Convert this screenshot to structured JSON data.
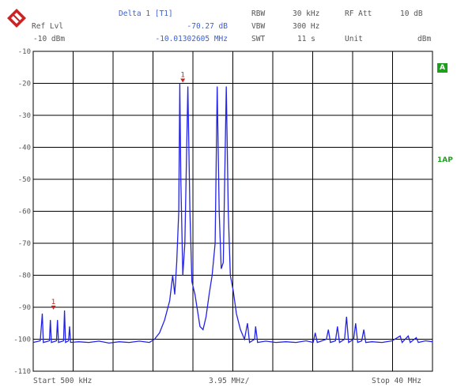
{
  "header": {
    "ref_lvl_label": "Ref Lvl",
    "ref_lvl_value": "-10 dBm",
    "marker_title": "Delta 1 [T1]",
    "marker_level": "-70.27 dB",
    "marker_freq": "-10.01302605 MHz",
    "rbw_label": "RBW",
    "rbw_value": "30 kHz",
    "vbw_label": "VBW",
    "vbw_value": "300 Hz",
    "swt_label": "SWT",
    "swt_value": "11 s",
    "rf_att_label": "RF Att",
    "rf_att_value": "10 dB",
    "unit_label": "Unit",
    "unit_value": "dBm"
  },
  "side_tags": {
    "trace": "A",
    "mode": "1AP"
  },
  "footer": {
    "start": "Start 500 kHz",
    "span": "3.95 MHz/",
    "stop": "Stop 40 MHz"
  },
  "colors": {
    "trace": "#2323e6",
    "grid": "#000000",
    "accent": "#3a5fd8",
    "tag": "#1ea01e"
  },
  "chart_data": {
    "type": "line",
    "title": "",
    "xlabel": "",
    "ylabel": "",
    "xunit": "MHz",
    "x_start": 0.5,
    "x_stop": 40,
    "x_div": 3.95,
    "ylim": [
      -110,
      -10
    ],
    "yticks": [
      "-10",
      "-20",
      "-30",
      "-40",
      "-50",
      "-60",
      "-70",
      "-80",
      "-90",
      "-100",
      "-110"
    ],
    "grid": true,
    "markers": [
      {
        "label": "1",
        "x": 15.3,
        "y": -20
      },
      {
        "label": "1",
        "x": 2.5,
        "y": -91
      }
    ],
    "series": [
      {
        "points": [
          [
            0.5,
            -101
          ],
          [
            1.2,
            -100.5
          ],
          [
            1.4,
            -92
          ],
          [
            1.5,
            -101
          ],
          [
            2.1,
            -100.5
          ],
          [
            2.2,
            -94
          ],
          [
            2.3,
            -101
          ],
          [
            2.8,
            -100.5
          ],
          [
            2.9,
            -94
          ],
          [
            3.0,
            -101
          ],
          [
            3.5,
            -100.5
          ],
          [
            3.6,
            -91
          ],
          [
            3.7,
            -101
          ],
          [
            4.0,
            -100.5
          ],
          [
            4.1,
            -96
          ],
          [
            4.2,
            -101
          ],
          [
            5,
            -100.8
          ],
          [
            6,
            -101
          ],
          [
            7,
            -100.6
          ],
          [
            8,
            -101.2
          ],
          [
            9,
            -100.8
          ],
          [
            10,
            -101
          ],
          [
            11,
            -100.6
          ],
          [
            12,
            -101
          ],
          [
            12.5,
            -100
          ],
          [
            13,
            -98
          ],
          [
            13.5,
            -94
          ],
          [
            14,
            -88
          ],
          [
            14.3,
            -80
          ],
          [
            14.5,
            -86
          ],
          [
            14.7,
            -76
          ],
          [
            14.9,
            -60
          ],
          [
            15.0,
            -20
          ],
          [
            15.1,
            -50
          ],
          [
            15.3,
            -80
          ],
          [
            15.5,
            -70
          ],
          [
            15.8,
            -21
          ],
          [
            16.0,
            -60
          ],
          [
            16.2,
            -82
          ],
          [
            16.5,
            -86
          ],
          [
            16.8,
            -92
          ],
          [
            17.0,
            -96
          ],
          [
            17.3,
            -97
          ],
          [
            17.6,
            -93
          ],
          [
            17.9,
            -86
          ],
          [
            18.2,
            -80
          ],
          [
            18.5,
            -70
          ],
          [
            18.7,
            -21
          ],
          [
            18.9,
            -60
          ],
          [
            19.1,
            -78
          ],
          [
            19.3,
            -76
          ],
          [
            19.6,
            -21
          ],
          [
            19.8,
            -60
          ],
          [
            20.0,
            -80
          ],
          [
            20.3,
            -85
          ],
          [
            20.6,
            -92
          ],
          [
            21.0,
            -97
          ],
          [
            21.4,
            -100
          ],
          [
            21.7,
            -95
          ],
          [
            21.9,
            -101
          ],
          [
            22.4,
            -100
          ],
          [
            22.5,
            -96
          ],
          [
            22.7,
            -101
          ],
          [
            23.5,
            -100.6
          ],
          [
            24.5,
            -101
          ],
          [
            25.5,
            -100.8
          ],
          [
            26.5,
            -101
          ],
          [
            27.5,
            -100.5
          ],
          [
            28.2,
            -101
          ],
          [
            28.4,
            -98
          ],
          [
            28.6,
            -101
          ],
          [
            29.5,
            -100
          ],
          [
            29.7,
            -97
          ],
          [
            29.9,
            -101
          ],
          [
            30.4,
            -100.5
          ],
          [
            30.6,
            -96
          ],
          [
            30.8,
            -101
          ],
          [
            31.3,
            -100
          ],
          [
            31.5,
            -93
          ],
          [
            31.7,
            -101
          ],
          [
            32.2,
            -100
          ],
          [
            32.4,
            -95
          ],
          [
            32.6,
            -101
          ],
          [
            33.0,
            -100.5
          ],
          [
            33.2,
            -97
          ],
          [
            33.4,
            -101
          ],
          [
            34,
            -100.8
          ],
          [
            35,
            -101
          ],
          [
            36,
            -100.5
          ],
          [
            36.8,
            -99
          ],
          [
            37,
            -101
          ],
          [
            37.6,
            -99
          ],
          [
            37.8,
            -101
          ],
          [
            38.4,
            -99.5
          ],
          [
            38.6,
            -101
          ],
          [
            39.3,
            -100.5
          ],
          [
            40,
            -100.8
          ]
        ]
      }
    ]
  }
}
